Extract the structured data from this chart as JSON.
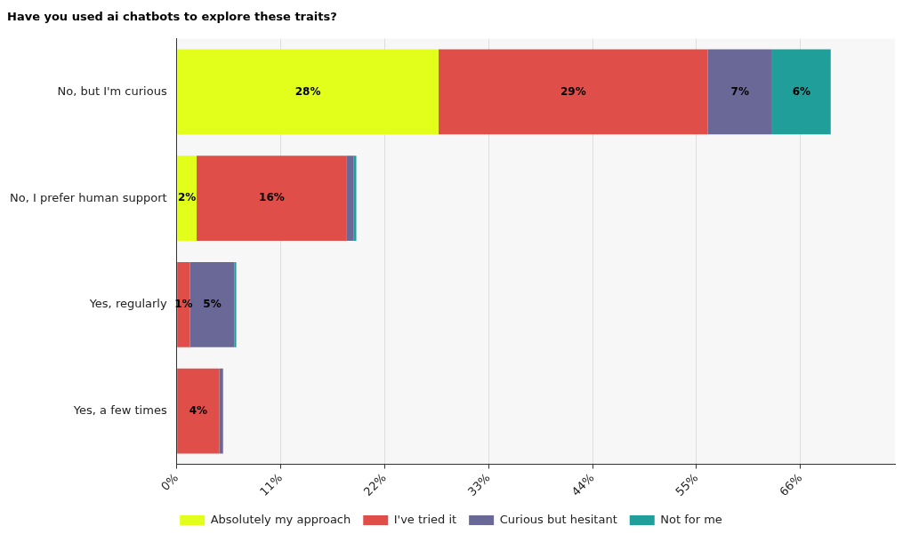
{
  "chart_data": {
    "type": "bar",
    "orientation": "horizontal",
    "stacked": true,
    "title": "Have you used ai chatbots to explore these traits?",
    "categories": [
      "No, but I'm curious",
      "No, I prefer human support",
      "Yes, regularly",
      "Yes, a few times"
    ],
    "series": [
      {
        "name": "Absolutely my approach",
        "color": "#e2ff1c",
        "values": [
          27.7,
          2.1,
          0,
          0
        ],
        "value_labels": [
          "28%",
          "2%",
          null,
          null
        ]
      },
      {
        "name": "I've tried it",
        "color": "#e04e4a",
        "values": [
          28.5,
          15.9,
          1.4,
          4.5
        ],
        "value_labels": [
          "29%",
          "16%",
          "1%",
          "4%"
        ]
      },
      {
        "name": "Curious but hesitant",
        "color": "#6a6896",
        "values": [
          6.8,
          0.7,
          4.7,
          0.4
        ],
        "value_labels": [
          "7%",
          null,
          "5%",
          null
        ]
      },
      {
        "name": "Not for me",
        "color": "#1f9e9a",
        "values": [
          6.2,
          0.3,
          0.2,
          0
        ],
        "value_labels": [
          "6%",
          null,
          null,
          null
        ]
      }
    ],
    "xlim": [
      0,
      76
    ],
    "xticks": [
      {
        "value": 0,
        "label": "0%"
      },
      {
        "value": 11,
        "label": "11%"
      },
      {
        "value": 22,
        "label": "22%"
      },
      {
        "value": 33,
        "label": "33%"
      },
      {
        "value": 44,
        "label": "44%"
      },
      {
        "value": 55,
        "label": "55%"
      },
      {
        "value": 66,
        "label": "66%"
      }
    ],
    "grid": "x",
    "legend": "bottom"
  }
}
